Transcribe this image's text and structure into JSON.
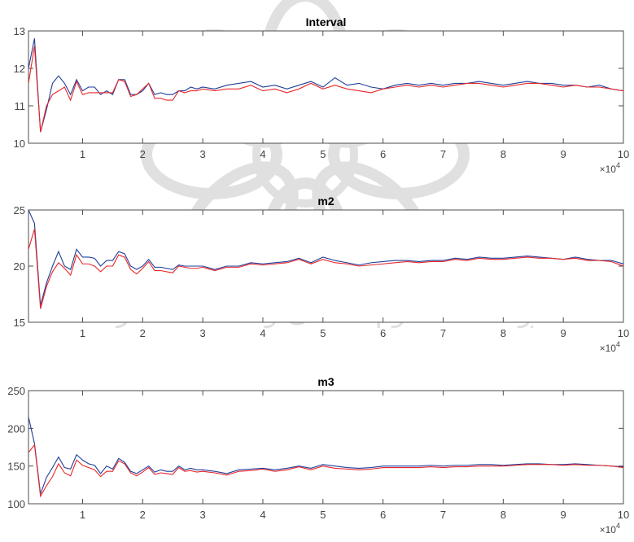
{
  "colors": {
    "series_blue": "#1f3d99",
    "series_red": "#e8262a",
    "axis": "#4d4d4d",
    "tick_text": "#444444"
  },
  "watermark": {
    "line1": "پژوهشگاه علوم انسانی و مطالعات فرهنگی",
    "line2": "پرتال جامع علوم انسانی"
  },
  "chart_data": [
    {
      "type": "line",
      "title": "Interval",
      "xlabel": "",
      "ylabel": "",
      "xlim": [
        1000,
        100000
      ],
      "ylim": [
        10,
        13
      ],
      "x_ticks": [
        10000,
        20000,
        30000,
        40000,
        50000,
        60000,
        70000,
        80000,
        90000,
        100000
      ],
      "x_tick_labels": [
        "1",
        "2",
        "3",
        "4",
        "5",
        "6",
        "7",
        "8",
        "9",
        "10"
      ],
      "y_ticks": [
        10,
        11,
        12,
        13
      ],
      "y_tick_labels": [
        "10",
        "11",
        "12",
        "13"
      ],
      "x_exponent_label": "×10",
      "x_exponent_power": "4",
      "grid": false,
      "series": [
        {
          "color": "#1f3d99",
          "x": [
            1000,
            2000,
            3000,
            4000,
            5000,
            6000,
            7000,
            8000,
            9000,
            10000,
            11000,
            12000,
            13000,
            14000,
            15000,
            16000,
            17000,
            18000,
            19000,
            20000,
            21000,
            22000,
            23000,
            24000,
            25000,
            26000,
            27000,
            28000,
            29000,
            30000,
            32000,
            34000,
            36000,
            38000,
            40000,
            42000,
            44000,
            46000,
            48000,
            50000,
            52000,
            54000,
            56000,
            58000,
            60000,
            62000,
            64000,
            66000,
            68000,
            70000,
            72000,
            74000,
            76000,
            78000,
            80000,
            82000,
            84000,
            86000,
            88000,
            90000,
            92000,
            94000,
            96000,
            98000,
            100000
          ],
          "y": [
            12.0,
            12.8,
            10.3,
            10.9,
            11.6,
            11.8,
            11.6,
            11.3,
            11.7,
            11.4,
            11.5,
            11.5,
            11.3,
            11.4,
            11.3,
            11.7,
            11.7,
            11.3,
            11.3,
            11.4,
            11.6,
            11.3,
            11.35,
            11.3,
            11.3,
            11.4,
            11.4,
            11.5,
            11.45,
            11.5,
            11.45,
            11.55,
            11.6,
            11.65,
            11.5,
            11.55,
            11.45,
            11.55,
            11.65,
            11.5,
            11.75,
            11.55,
            11.6,
            11.5,
            11.45,
            11.55,
            11.6,
            11.55,
            11.6,
            11.55,
            11.6,
            11.6,
            11.65,
            11.6,
            11.55,
            11.6,
            11.65,
            11.6,
            11.6,
            11.55,
            11.55,
            11.5,
            11.55,
            11.45,
            11.4
          ]
        },
        {
          "color": "#e8262a",
          "x": [
            1000,
            2000,
            3000,
            4000,
            5000,
            6000,
            7000,
            8000,
            9000,
            10000,
            11000,
            12000,
            13000,
            14000,
            15000,
            16000,
            17000,
            18000,
            19000,
            20000,
            21000,
            22000,
            23000,
            24000,
            25000,
            26000,
            27000,
            28000,
            29000,
            30000,
            32000,
            34000,
            36000,
            38000,
            40000,
            42000,
            44000,
            46000,
            48000,
            50000,
            52000,
            54000,
            56000,
            58000,
            60000,
            62000,
            64000,
            66000,
            68000,
            70000,
            72000,
            74000,
            76000,
            78000,
            80000,
            82000,
            84000,
            86000,
            88000,
            90000,
            92000,
            94000,
            96000,
            98000,
            100000
          ],
          "y": [
            11.6,
            12.6,
            10.3,
            11.0,
            11.3,
            11.4,
            11.5,
            11.15,
            11.65,
            11.3,
            11.35,
            11.35,
            11.35,
            11.35,
            11.35,
            11.7,
            11.65,
            11.25,
            11.3,
            11.45,
            11.6,
            11.2,
            11.2,
            11.15,
            11.15,
            11.4,
            11.35,
            11.4,
            11.4,
            11.45,
            11.4,
            11.45,
            11.45,
            11.55,
            11.4,
            11.45,
            11.35,
            11.45,
            11.6,
            11.45,
            11.55,
            11.45,
            11.4,
            11.35,
            11.45,
            11.5,
            11.55,
            11.5,
            11.55,
            11.5,
            11.55,
            11.6,
            11.6,
            11.55,
            11.5,
            11.55,
            11.6,
            11.6,
            11.55,
            11.5,
            11.55,
            11.5,
            11.5,
            11.45,
            11.4
          ]
        }
      ]
    },
    {
      "type": "line",
      "title": "m2",
      "xlabel": "",
      "ylabel": "",
      "xlim": [
        1000,
        100000
      ],
      "ylim": [
        15,
        25
      ],
      "x_ticks": [
        10000,
        20000,
        30000,
        40000,
        50000,
        60000,
        70000,
        80000,
        90000,
        100000
      ],
      "x_tick_labels": [
        "1",
        "2",
        "3",
        "4",
        "5",
        "6",
        "7",
        "8",
        "9",
        "10"
      ],
      "y_ticks": [
        15,
        20,
        25
      ],
      "y_tick_labels": [
        "15",
        "20",
        "25"
      ],
      "x_exponent_label": "×10",
      "x_exponent_power": "4",
      "grid": false,
      "series": [
        {
          "color": "#1f3d99",
          "x": [
            1000,
            2000,
            3000,
            4000,
            5000,
            6000,
            7000,
            8000,
            9000,
            10000,
            11000,
            12000,
            13000,
            14000,
            15000,
            16000,
            17000,
            18000,
            19000,
            20000,
            21000,
            22000,
            23000,
            24000,
            25000,
            26000,
            27000,
            28000,
            29000,
            30000,
            32000,
            34000,
            36000,
            38000,
            40000,
            42000,
            44000,
            46000,
            48000,
            50000,
            52000,
            54000,
            56000,
            58000,
            60000,
            62000,
            64000,
            66000,
            68000,
            70000,
            72000,
            74000,
            76000,
            78000,
            80000,
            82000,
            84000,
            86000,
            88000,
            90000,
            92000,
            94000,
            96000,
            98000,
            100000
          ],
          "y": [
            25.0,
            23.8,
            16.5,
            18.5,
            20.0,
            21.3,
            20.0,
            19.7,
            21.5,
            20.8,
            20.8,
            20.7,
            20.0,
            20.5,
            20.5,
            21.3,
            21.1,
            20.0,
            19.7,
            20.0,
            20.6,
            19.9,
            19.9,
            19.8,
            19.7,
            20.1,
            20.0,
            20.0,
            20.0,
            20.0,
            19.7,
            20.0,
            20.0,
            20.3,
            20.2,
            20.3,
            20.4,
            20.7,
            20.3,
            20.8,
            20.5,
            20.3,
            20.1,
            20.3,
            20.4,
            20.5,
            20.5,
            20.4,
            20.5,
            20.5,
            20.7,
            20.6,
            20.8,
            20.7,
            20.7,
            20.8,
            20.9,
            20.8,
            20.7,
            20.6,
            20.8,
            20.6,
            20.5,
            20.5,
            20.2
          ]
        },
        {
          "color": "#e8262a",
          "x": [
            1000,
            2000,
            3000,
            4000,
            5000,
            6000,
            7000,
            8000,
            9000,
            10000,
            11000,
            12000,
            13000,
            14000,
            15000,
            16000,
            17000,
            18000,
            19000,
            20000,
            21000,
            22000,
            23000,
            24000,
            25000,
            26000,
            27000,
            28000,
            29000,
            30000,
            32000,
            34000,
            36000,
            38000,
            40000,
            42000,
            44000,
            46000,
            48000,
            50000,
            52000,
            54000,
            56000,
            58000,
            60000,
            62000,
            64000,
            66000,
            68000,
            70000,
            72000,
            74000,
            76000,
            78000,
            80000,
            82000,
            84000,
            86000,
            88000,
            90000,
            92000,
            94000,
            96000,
            98000,
            100000
          ],
          "y": [
            21.5,
            23.3,
            16.2,
            18.2,
            19.5,
            20.3,
            19.8,
            19.2,
            21.0,
            20.2,
            20.2,
            20.0,
            19.5,
            20.0,
            20.0,
            21.0,
            20.8,
            19.7,
            19.3,
            19.8,
            20.4,
            19.6,
            19.6,
            19.5,
            19.4,
            20.0,
            19.9,
            19.8,
            19.8,
            19.9,
            19.6,
            19.9,
            19.9,
            20.2,
            20.1,
            20.2,
            20.3,
            20.6,
            20.2,
            20.6,
            20.3,
            20.2,
            20.0,
            20.1,
            20.2,
            20.3,
            20.4,
            20.3,
            20.4,
            20.4,
            20.6,
            20.5,
            20.7,
            20.6,
            20.6,
            20.7,
            20.8,
            20.7,
            20.7,
            20.6,
            20.7,
            20.5,
            20.5,
            20.4,
            20.0
          ]
        }
      ]
    },
    {
      "type": "line",
      "title": "m3",
      "xlabel": "",
      "ylabel": "",
      "xlim": [
        1000,
        100000
      ],
      "ylim": [
        100,
        250
      ],
      "x_ticks": [
        10000,
        20000,
        30000,
        40000,
        50000,
        60000,
        70000,
        80000,
        90000,
        100000
      ],
      "x_tick_labels": [
        "1",
        "2",
        "3",
        "4",
        "5",
        "6",
        "7",
        "8",
        "9",
        "10"
      ],
      "y_ticks": [
        100,
        150,
        200,
        250
      ],
      "y_tick_labels": [
        "100",
        "150",
        "200",
        "250"
      ],
      "x_exponent_label": "×10",
      "x_exponent_power": "4",
      "grid": false,
      "series": [
        {
          "color": "#1f3d99",
          "x": [
            1000,
            2000,
            3000,
            4000,
            5000,
            6000,
            7000,
            8000,
            9000,
            10000,
            11000,
            12000,
            13000,
            14000,
            15000,
            16000,
            17000,
            18000,
            19000,
            20000,
            21000,
            22000,
            23000,
            24000,
            25000,
            26000,
            27000,
            28000,
            29000,
            30000,
            32000,
            34000,
            36000,
            38000,
            40000,
            42000,
            44000,
            46000,
            48000,
            50000,
            52000,
            54000,
            56000,
            58000,
            60000,
            62000,
            64000,
            66000,
            68000,
            70000,
            72000,
            74000,
            76000,
            78000,
            80000,
            82000,
            84000,
            86000,
            88000,
            90000,
            92000,
            94000,
            96000,
            98000,
            100000
          ],
          "y": [
            215,
            180,
            113,
            135,
            148,
            162,
            148,
            146,
            165,
            158,
            153,
            151,
            140,
            150,
            146,
            160,
            155,
            143,
            140,
            145,
            150,
            142,
            145,
            143,
            143,
            150,
            145,
            147,
            145,
            145,
            143,
            140,
            145,
            146,
            147,
            145,
            147,
            150,
            147,
            152,
            150,
            148,
            147,
            148,
            150,
            150,
            150,
            150,
            151,
            150,
            151,
            151,
            152,
            152,
            151,
            152,
            153,
            153,
            152,
            152,
            153,
            152,
            151,
            150,
            149
          ]
        },
        {
          "color": "#e8262a",
          "x": [
            1000,
            2000,
            3000,
            4000,
            5000,
            6000,
            7000,
            8000,
            9000,
            10000,
            11000,
            12000,
            13000,
            14000,
            15000,
            16000,
            17000,
            18000,
            19000,
            20000,
            21000,
            22000,
            23000,
            24000,
            25000,
            26000,
            27000,
            28000,
            29000,
            30000,
            32000,
            34000,
            36000,
            38000,
            40000,
            42000,
            44000,
            46000,
            48000,
            50000,
            52000,
            54000,
            56000,
            58000,
            60000,
            62000,
            64000,
            66000,
            68000,
            70000,
            72000,
            74000,
            76000,
            78000,
            80000,
            82000,
            84000,
            86000,
            88000,
            90000,
            92000,
            94000,
            96000,
            98000,
            100000
          ],
          "y": [
            168,
            178,
            110,
            124,
            136,
            153,
            141,
            137,
            158,
            151,
            148,
            145,
            136,
            143,
            143,
            157,
            153,
            141,
            137,
            142,
            148,
            139,
            141,
            140,
            139,
            148,
            143,
            144,
            142,
            143,
            141,
            138,
            143,
            144,
            146,
            143,
            145,
            149,
            145,
            150,
            147,
            146,
            145,
            146,
            148,
            148,
            148,
            148,
            149,
            148,
            149,
            149,
            150,
            150,
            150,
            151,
            152,
            152,
            152,
            151,
            152,
            151,
            151,
            150,
            148
          ]
        }
      ]
    }
  ]
}
